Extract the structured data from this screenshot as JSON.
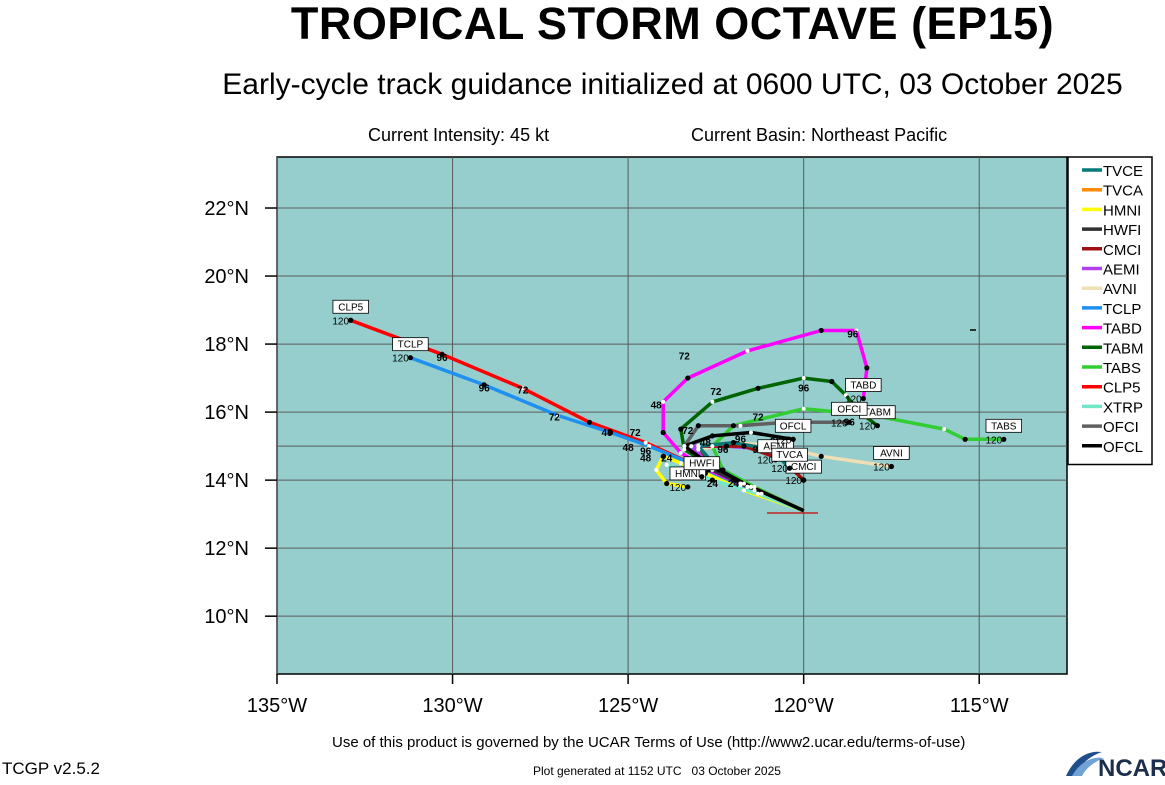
{
  "header": {
    "title": "TROPICAL STORM OCTAVE (EP15)",
    "subtitle": "Early-cycle track guidance initialized at 0600 UTC, 03 October 2025",
    "intensity": "Current Intensity: 45 kt",
    "basin": "Current Basin: Northeast Pacific"
  },
  "footer": {
    "terms": "Use of this product is governed by the UCAR Terms of Use (http://www2.ucar.edu/terms-of-use)",
    "version": "TCGP v2.5.2",
    "generated": "Plot generated at 1152 UTC   03 October 2025",
    "logo_text": "NCAR"
  },
  "colors": {
    "ocean": "#96cece",
    "grid": "#5a5a5a"
  },
  "map": {
    "lon_range": [
      -135,
      -112.5
    ],
    "lat_range": [
      8.3,
      23.5
    ],
    "lon_ticks": [
      -135,
      -130,
      -125,
      -120,
      -115
    ],
    "lon_tick_labels": [
      "135°W",
      "130°W",
      "125°W",
      "120°W",
      "115°W"
    ],
    "lat_ticks": [
      10,
      12,
      14,
      16,
      18,
      20,
      22
    ],
    "lat_tick_labels": [
      "10°N",
      "12°N",
      "14°N",
      "16°N",
      "18°N",
      "20°N",
      "22°N"
    ]
  },
  "legend": [
    {
      "name": "TVCE",
      "color": "#007a7a"
    },
    {
      "name": "TVCA",
      "color": "#ff8c00"
    },
    {
      "name": "HMNI",
      "color": "#ffff00"
    },
    {
      "name": "HWFI",
      "color": "#303030"
    },
    {
      "name": "CMCI",
      "color": "#a01010"
    },
    {
      "name": "AEMI",
      "color": "#b040f0"
    },
    {
      "name": "AVNI",
      "color": "#f0deb4"
    },
    {
      "name": "TCLP",
      "color": "#2090f0"
    },
    {
      "name": "TABD",
      "color": "#ff00ff"
    },
    {
      "name": "TABM",
      "color": "#006400"
    },
    {
      "name": "TABS",
      "color": "#32cd32"
    },
    {
      "name": "CLP5",
      "color": "#ff0000"
    },
    {
      "name": "XTRP",
      "color": "#70e8c8"
    },
    {
      "name": "OFCI",
      "color": "#606060"
    },
    {
      "name": "OFCL",
      "color": "#000000"
    }
  ],
  "chart_data": {
    "type": "map",
    "tracks": [
      {
        "name": "CLP5",
        "color": "#ff0000",
        "points": [
          [
            -120,
            13.1
          ],
          [
            -121.8,
            13.9
          ],
          [
            -122.9,
            14.35
          ],
          [
            -124.5,
            15.1
          ],
          [
            -126.1,
            15.7
          ],
          [
            -128.0,
            16.7
          ],
          [
            -130.3,
            17.7
          ],
          [
            -132.9,
            18.7
          ]
        ],
        "end_label": "CLP5",
        "end_value": "120"
      },
      {
        "name": "TCLP",
        "color": "#2090f0",
        "points": [
          [
            -120,
            13.1
          ],
          [
            -121.8,
            13.85
          ],
          [
            -123.0,
            14.4
          ],
          [
            -124.4,
            15.0
          ],
          [
            -125.5,
            15.4
          ],
          [
            -127.0,
            15.9
          ],
          [
            -129.1,
            16.8
          ],
          [
            -131.2,
            17.6
          ]
        ],
        "end_label": "TCLP",
        "end_value": "120"
      },
      {
        "name": "TABD",
        "color": "#ff00ff",
        "points": [
          [
            -120,
            13.1
          ],
          [
            -121.6,
            13.8
          ],
          [
            -122.7,
            14.3
          ],
          [
            -123.5,
            14.8
          ],
          [
            -124.0,
            15.4
          ],
          [
            -124.0,
            16.3
          ],
          [
            -123.3,
            17.0
          ],
          [
            -121.6,
            17.8
          ],
          [
            -119.5,
            18.4
          ],
          [
            -118.5,
            18.4
          ],
          [
            -118.2,
            17.3
          ],
          [
            -118.3,
            16.4
          ]
        ],
        "end_label": "TABD",
        "end_value": "120"
      },
      {
        "name": "TABM",
        "color": "#006400",
        "points": [
          [
            -120,
            13.1
          ],
          [
            -121.6,
            13.8
          ],
          [
            -122.6,
            14.4
          ],
          [
            -123.4,
            14.9
          ],
          [
            -123.5,
            15.5
          ],
          [
            -122.6,
            16.3
          ],
          [
            -121.3,
            16.7
          ],
          [
            -120.0,
            17.0
          ],
          [
            -119.2,
            16.9
          ],
          [
            -118.8,
            16.5
          ],
          [
            -118.4,
            16.0
          ],
          [
            -117.9,
            15.6
          ]
        ],
        "end_label": "TABM",
        "end_value": "120"
      },
      {
        "name": "TABS",
        "color": "#32cd32",
        "points": [
          [
            -120,
            13.1
          ],
          [
            -121.4,
            13.8
          ],
          [
            -122.3,
            14.3
          ],
          [
            -122.6,
            15.0
          ],
          [
            -122.0,
            15.6
          ],
          [
            -120.0,
            16.1
          ],
          [
            -118.0,
            15.9
          ],
          [
            -116.0,
            15.5
          ],
          [
            -115.4,
            15.2
          ],
          [
            -114.3,
            15.2
          ]
        ],
        "end_label": "TABS",
        "end_value": "120"
      },
      {
        "name": "AVNI",
        "color": "#f0deb4",
        "points": [
          [
            -120,
            13.1
          ],
          [
            -121.4,
            13.7
          ],
          [
            -122.4,
            14.3
          ],
          [
            -123.0,
            14.9
          ],
          [
            -122.0,
            15.1
          ],
          [
            -120.7,
            15.0
          ],
          [
            -119.5,
            14.7
          ],
          [
            -117.5,
            14.4
          ]
        ],
        "end_label": "AVNI",
        "end_value": "120"
      },
      {
        "name": "AEMI",
        "color": "#b040f0",
        "points": [
          [
            -120,
            13.1
          ],
          [
            -121.6,
            13.8
          ],
          [
            -122.6,
            14.4
          ],
          [
            -123.2,
            15.0
          ],
          [
            -122.2,
            15.0
          ],
          [
            -121.0,
            14.9
          ],
          [
            -120.8,
            14.6
          ]
        ],
        "end_label": "AEMI",
        "end_value": "120"
      },
      {
        "name": "CMCI",
        "color": "#a01010",
        "points": [
          [
            -120,
            13.1
          ],
          [
            -121.7,
            13.9
          ],
          [
            -122.6,
            14.4
          ],
          [
            -123.0,
            15.0
          ],
          [
            -121.7,
            15.0
          ],
          [
            -120.6,
            14.6
          ],
          [
            -120.0,
            14.0
          ]
        ],
        "end_label": "CMCI",
        "end_value": "120"
      },
      {
        "name": "TVCA",
        "color": "#ff8c00",
        "points": [
          [
            -120,
            13.1
          ],
          [
            -121.6,
            13.8
          ],
          [
            -122.5,
            14.4
          ],
          [
            -123.0,
            15.0
          ],
          [
            -122.0,
            15.1
          ],
          [
            -120.9,
            14.9
          ],
          [
            -120.4,
            14.35
          ]
        ],
        "end_label": "TVCA",
        "end_value": "120"
      },
      {
        "name": "TVCE",
        "color": "#007a7a",
        "points": [
          [
            -120,
            13.1
          ],
          [
            -121.6,
            13.8
          ],
          [
            -122.5,
            14.4
          ],
          [
            -123.0,
            15.0
          ],
          [
            -122.0,
            15.1
          ],
          [
            -120.9,
            14.9
          ],
          [
            -120.4,
            14.35
          ]
        ],
        "end_label": "",
        "end_value": ""
      },
      {
        "name": "HMNI",
        "color": "#ffff00",
        "points": [
          [
            -120,
            13.1
          ],
          [
            -121.7,
            13.7
          ],
          [
            -122.8,
            14.2
          ],
          [
            -123.5,
            14.5
          ],
          [
            -124.0,
            14.7
          ],
          [
            -124.2,
            14.3
          ],
          [
            -123.9,
            13.9
          ],
          [
            -123.3,
            13.8
          ]
        ],
        "end_label": "HMNI",
        "end_value": "120"
      },
      {
        "name": "HWFI",
        "color": "#303030",
        "points": [
          [
            -120,
            13.1
          ],
          [
            -121.2,
            13.6
          ],
          [
            -122.0,
            14.0
          ],
          [
            -122.6,
            14.3
          ],
          [
            -123.1,
            14.6
          ],
          [
            -123.3,
            14.5
          ],
          [
            -122.9,
            14.1
          ]
        ],
        "end_label": "HWFI",
        "end_value": ""
      },
      {
        "name": "XTRP",
        "color": "#70e8c8",
        "points": [
          [
            -120,
            13.1
          ],
          [
            -121.3,
            13.6
          ],
          [
            -122.6,
            14.0
          ],
          [
            -123.9,
            14.45
          ]
        ],
        "end_label": "",
        "end_value": ""
      },
      {
        "name": "OFCI",
        "color": "#606060",
        "points": [
          [
            -120,
            13.1
          ],
          [
            -121.5,
            13.8
          ],
          [
            -122.6,
            14.4
          ],
          [
            -123.4,
            15.0
          ],
          [
            -123.0,
            15.6
          ],
          [
            -121.8,
            15.6
          ],
          [
            -120.5,
            15.7
          ],
          [
            -118.7,
            15.7
          ]
        ],
        "end_label": "OFCI",
        "end_value": "120"
      },
      {
        "name": "OFCL",
        "color": "#000000",
        "points": [
          [
            -120,
            13.1
          ],
          [
            -121.5,
            13.8
          ],
          [
            -122.6,
            14.4
          ],
          [
            -123.4,
            15.0
          ],
          [
            -122.6,
            15.3
          ],
          [
            -121.5,
            15.4
          ],
          [
            -120.3,
            15.2
          ]
        ],
        "end_label": "OFCL",
        "end_value": "120"
      }
    ],
    "hour_labels": [
      {
        "text": "96",
        "lon": -130.3,
        "lat": 17.5
      },
      {
        "text": "96",
        "lon": -129.1,
        "lat": 16.6
      },
      {
        "text": "72",
        "lon": -128.0,
        "lat": 16.55
      },
      {
        "text": "72",
        "lon": -127.1,
        "lat": 15.75
      },
      {
        "text": "48",
        "lon": -125.6,
        "lat": 15.3
      },
      {
        "text": "72",
        "lon": -124.8,
        "lat": 15.3
      },
      {
        "text": "48",
        "lon": -125.0,
        "lat": 14.85
      },
      {
        "text": "96",
        "lon": -124.5,
        "lat": 14.75
      },
      {
        "text": "48",
        "lon": -124.5,
        "lat": 14.55
      },
      {
        "text": "48",
        "lon": -124.2,
        "lat": 16.1
      },
      {
        "text": "72",
        "lon": -123.4,
        "lat": 17.55
      },
      {
        "text": "72",
        "lon": -122.5,
        "lat": 16.5
      },
      {
        "text": "96",
        "lon": -118.6,
        "lat": 18.2
      },
      {
        "text": "96",
        "lon": -120.0,
        "lat": 16.6
      },
      {
        "text": "72",
        "lon": -121.3,
        "lat": 15.75
      },
      {
        "text": "96",
        "lon": -120.4,
        "lat": 15.4
      },
      {
        "text": "96",
        "lon": -118.7,
        "lat": 15.6
      },
      {
        "text": "96",
        "lon": -120.8,
        "lat": 15.05
      },
      {
        "text": "96",
        "lon": -121.3,
        "lat": 14.8
      },
      {
        "text": "96",
        "lon": -121.8,
        "lat": 15.1
      },
      {
        "text": "96",
        "lon": -122.3,
        "lat": 14.8
      },
      {
        "text": "48",
        "lon": -122.8,
        "lat": 15.0
      },
      {
        "text": "24",
        "lon": -122.0,
        "lat": 13.8
      },
      {
        "text": "24",
        "lon": -122.6,
        "lat": 13.8
      },
      {
        "text": "24",
        "lon": -123.9,
        "lat": 14.55
      },
      {
        "text": "72",
        "lon": -123.3,
        "lat": 15.35
      }
    ]
  }
}
